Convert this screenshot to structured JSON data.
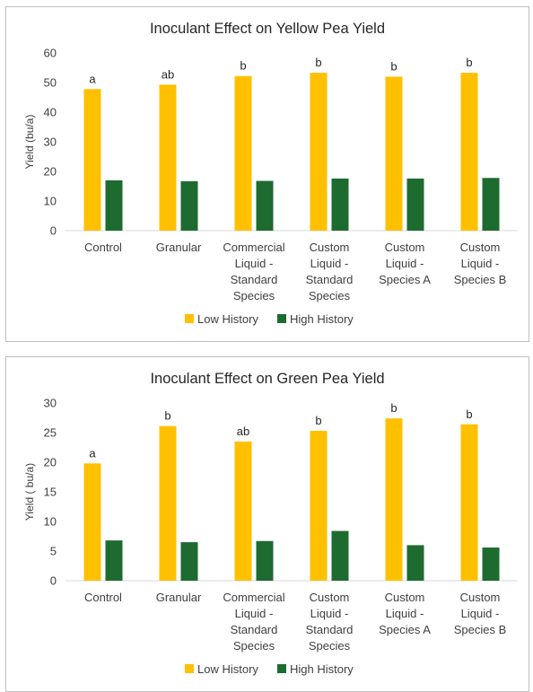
{
  "colors": {
    "low_history": "#FFC000",
    "high_history": "#1E6B30",
    "axis": "#D9D9D9"
  },
  "chart_data": [
    {
      "type": "bar",
      "title": "Inoculant Effect on Yellow Pea Yield",
      "ylabel": "Yield (bu/a)",
      "ylim": [
        0,
        60
      ],
      "yticks": [
        0,
        10,
        20,
        30,
        40,
        50,
        60
      ],
      "categories": [
        [
          "Control"
        ],
        [
          "Granular"
        ],
        [
          "Commercial",
          "Liquid -",
          "Standard",
          "Species"
        ],
        [
          "Custom",
          "Liquid -",
          "Standard",
          "Species"
        ],
        [
          "Custom",
          "Liquid -",
          "Species A"
        ],
        [
          "Custom",
          "Liquid -",
          "Species B"
        ]
      ],
      "series": [
        {
          "name": "Low History",
          "color": "#FFC000",
          "values": [
            47.8,
            49.3,
            52.2,
            53.3,
            52.0,
            53.3
          ]
        },
        {
          "name": "High History",
          "color": "#1E6B30",
          "values": [
            17.0,
            16.7,
            16.8,
            17.6,
            17.6,
            17.8
          ]
        }
      ],
      "significance_letters": [
        "a",
        "ab",
        "b",
        "b",
        "b",
        "b"
      ],
      "legend": "bottom",
      "grid": false
    },
    {
      "type": "bar",
      "title": "Inoculant Effect on Green Pea Yield",
      "ylabel": "Yield ( bu/a)",
      "ylim": [
        0,
        30
      ],
      "yticks": [
        0,
        5,
        10,
        15,
        20,
        25,
        30
      ],
      "categories": [
        [
          "Control"
        ],
        [
          "Granular"
        ],
        [
          "Commercial",
          "Liquid -",
          "Standard",
          "Species"
        ],
        [
          "Custom",
          "Liquid -",
          "Standard",
          "Species"
        ],
        [
          "Custom",
          "Liquid -",
          "Species A"
        ],
        [
          "Custom",
          "Liquid -",
          "Species B"
        ]
      ],
      "series": [
        {
          "name": "Low History",
          "color": "#FFC000",
          "values": [
            19.8,
            26.1,
            23.5,
            25.3,
            27.4,
            26.4
          ]
        },
        {
          "name": "High History",
          "color": "#1E6B30",
          "values": [
            6.8,
            6.5,
            6.7,
            8.4,
            6.0,
            5.6
          ]
        }
      ],
      "significance_letters": [
        "a",
        "b",
        "ab",
        "b",
        "b",
        "b"
      ],
      "legend": "bottom",
      "grid": false
    }
  ]
}
